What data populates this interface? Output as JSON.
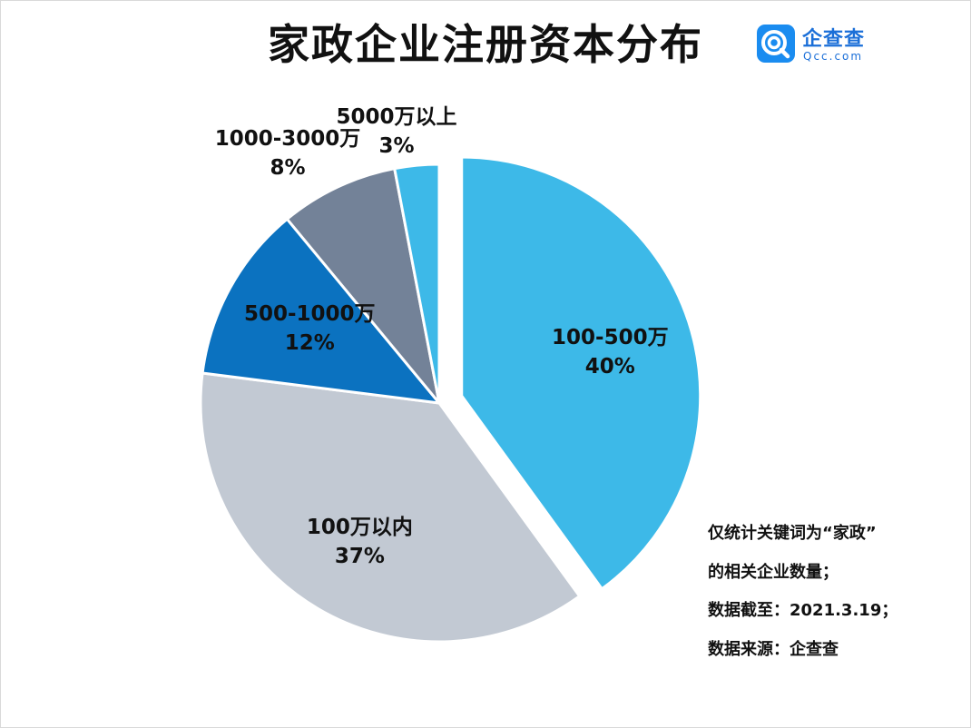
{
  "title": "家政企业注册资本分布",
  "logo": {
    "icon": "qcc-logo-icon",
    "name": "企查查",
    "domain": "Qcc.com",
    "color": "#1a8cf0"
  },
  "chart_data": {
    "type": "pie",
    "title": "家政企业注册资本分布",
    "slices": [
      {
        "label": "100-500万",
        "value": 40,
        "percent_label": "40%",
        "color": "#3db9e8",
        "exploded": true
      },
      {
        "label": "100万以内",
        "value": 37,
        "percent_label": "37%",
        "color": "#c2c9d3",
        "exploded": false
      },
      {
        "label": "500-1000万",
        "value": 12,
        "percent_label": "12%",
        "color": "#0b72c0",
        "exploded": false
      },
      {
        "label": "1000-3000万",
        "value": 8,
        "percent_label": "8%",
        "color": "#738298",
        "exploded": false
      },
      {
        "label": "5000万以上",
        "value": 3,
        "percent_label": "3%",
        "color": "#3db9e8",
        "exploded": false
      }
    ],
    "legend": "none"
  },
  "notes": [
    "仅统计关键词为“家政”",
    "的相关企业数量；",
    "数据截至：2021.3.19；",
    "数据来源：企查查"
  ]
}
